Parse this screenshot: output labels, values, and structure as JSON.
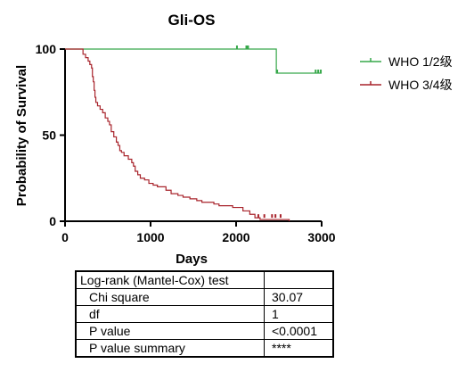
{
  "chart_data": {
    "type": "line",
    "title": "Gli-OS",
    "xlabel": "Days",
    "ylabel": "Probability of Survival",
    "xlim": [
      0,
      3000
    ],
    "ylim": [
      0,
      100
    ],
    "xticks": [
      0,
      1000,
      2000,
      3000
    ],
    "yticks": [
      0,
      50,
      100
    ],
    "grid": false,
    "legend_position": "top-right",
    "series": [
      {
        "name": "WHO 1/2级",
        "color": "#36a84a",
        "step": true,
        "points": [
          [
            0,
            100
          ],
          [
            2470,
            100
          ],
          [
            2470,
            86
          ],
          [
            3000,
            86
          ]
        ],
        "censored": [
          [
            2010,
            100
          ],
          [
            2120,
            100
          ],
          [
            2140,
            100
          ],
          [
            2480,
            86
          ],
          [
            2930,
            86
          ],
          [
            2960,
            86
          ],
          [
            2990,
            86
          ]
        ]
      },
      {
        "name": "WHO 3/4级",
        "color": "#a8232b",
        "step": true,
        "points": [
          [
            0,
            100
          ],
          [
            180,
            100
          ],
          [
            210,
            97
          ],
          [
            240,
            95
          ],
          [
            270,
            93
          ],
          [
            290,
            91
          ],
          [
            310,
            89
          ],
          [
            320,
            84
          ],
          [
            330,
            81
          ],
          [
            340,
            76
          ],
          [
            350,
            72
          ],
          [
            360,
            69
          ],
          [
            380,
            67
          ],
          [
            410,
            65
          ],
          [
            440,
            63
          ],
          [
            470,
            60
          ],
          [
            500,
            58
          ],
          [
            520,
            56
          ],
          [
            540,
            52
          ],
          [
            570,
            49
          ],
          [
            600,
            46
          ],
          [
            620,
            44
          ],
          [
            640,
            41
          ],
          [
            660,
            40
          ],
          [
            690,
            38
          ],
          [
            740,
            36
          ],
          [
            780,
            34
          ],
          [
            800,
            32
          ],
          [
            820,
            29
          ],
          [
            850,
            27
          ],
          [
            880,
            25
          ],
          [
            930,
            24
          ],
          [
            980,
            22
          ],
          [
            1030,
            21
          ],
          [
            1080,
            20
          ],
          [
            1180,
            18
          ],
          [
            1240,
            16
          ],
          [
            1320,
            15
          ],
          [
            1380,
            14
          ],
          [
            1460,
            13
          ],
          [
            1540,
            12
          ],
          [
            1600,
            11
          ],
          [
            1740,
            10
          ],
          [
            1800,
            9
          ],
          [
            1960,
            8
          ],
          [
            2080,
            6
          ],
          [
            2160,
            4
          ],
          [
            2220,
            2
          ],
          [
            2280,
            1
          ],
          [
            2420,
            1
          ],
          [
            2620,
            0
          ]
        ],
        "censored": [
          [
            2260,
            2
          ],
          [
            2330,
            2
          ],
          [
            2420,
            2
          ],
          [
            2460,
            2
          ],
          [
            2520,
            2
          ]
        ]
      }
    ]
  },
  "stats_table": {
    "header": "Log-rank (Mantel-Cox) test",
    "rows": [
      {
        "label": "Chi square",
        "value": "30.07"
      },
      {
        "label": "df",
        "value": "1"
      },
      {
        "label": "P value",
        "value": "<0.0001"
      },
      {
        "label": "P value summary",
        "value": "****"
      }
    ]
  }
}
